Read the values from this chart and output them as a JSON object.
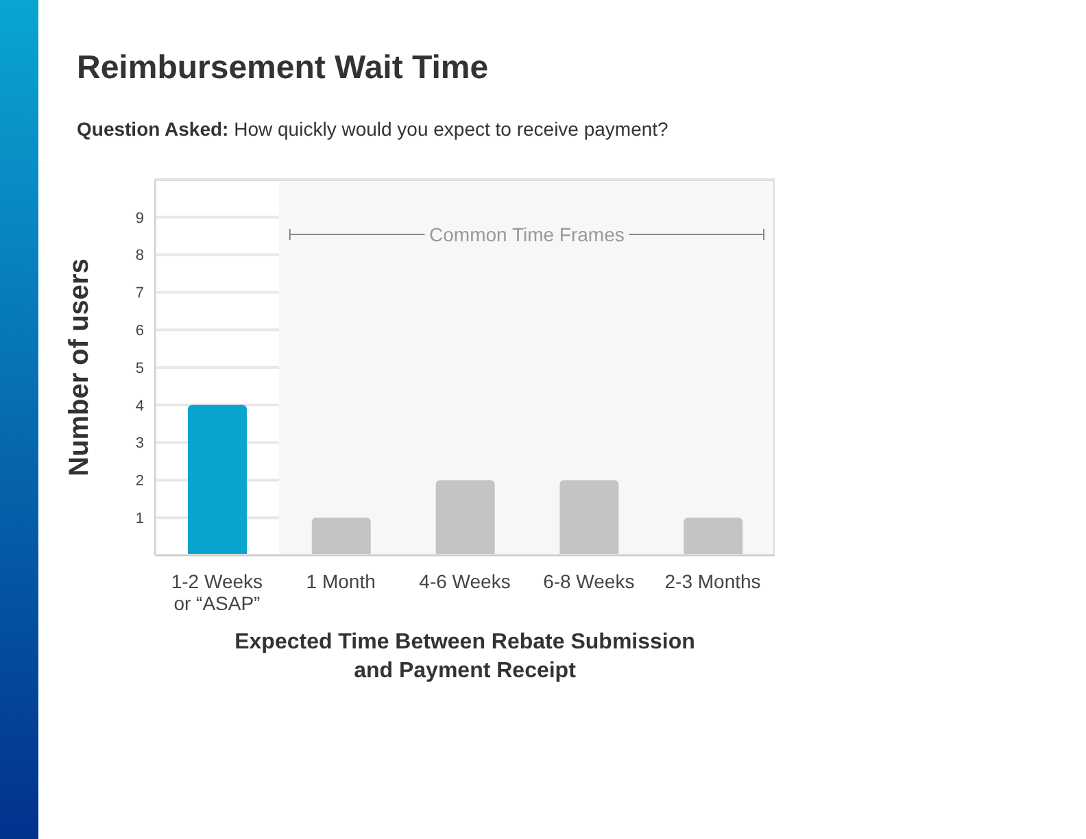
{
  "chart_data": {
    "type": "bar",
    "title": "Reimbursement Wait Time",
    "subtitle": "Question Asked: How quickly would you expect to receive payment?",
    "categories": [
      "1-2 Weeks\nor “ASAP”",
      "1 Month",
      "4-6 Weeks",
      "6-8 Weeks",
      "2-3 Months"
    ],
    "values": [
      4,
      1,
      2,
      2,
      1
    ],
    "colors": [
      "#09a5cf",
      "#c4c4c4",
      "#c4c4c4",
      "#c4c4c4",
      "#c4c4c4"
    ],
    "ylim": [
      0,
      10
    ],
    "yticks": [
      1,
      2,
      3,
      4,
      5,
      6,
      7,
      8,
      9
    ],
    "grid": "y",
    "ylabel": "Number of users",
    "xlabel": "Expected Time Between Rebate Submission\nand Payment Receipt",
    "bands": [
      {
        "axis": "x",
        "from": "1 Month",
        "to": "2-3 Months",
        "label": "Common Time Frames",
        "color": "#f7f7f7"
      }
    ]
  }
}
